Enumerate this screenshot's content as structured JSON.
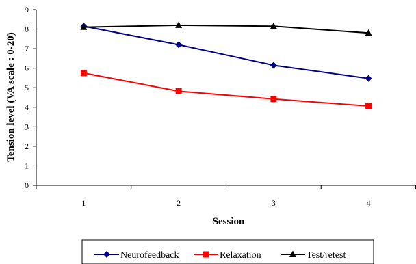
{
  "chart_data": {
    "type": "line",
    "title": "",
    "xlabel": "Session",
    "ylabel": "Tension level (VA scale : 0-20)",
    "categories": [
      "1",
      "2",
      "3",
      "4"
    ],
    "ylim": [
      0,
      9
    ],
    "yticks": [
      "0",
      "1",
      "2",
      "3",
      "4",
      "5",
      "6",
      "7",
      "8",
      "9"
    ],
    "grid": false,
    "legend_position": "bottom",
    "series": [
      {
        "name": "Neurofeedback",
        "values": [
          8.15,
          7.2,
          6.15,
          5.47
        ],
        "color": "#00008B",
        "marker": "diamond"
      },
      {
        "name": "Relaxation",
        "values": [
          5.75,
          4.82,
          4.42,
          4.06
        ],
        "color": "#FF0000",
        "marker": "square"
      },
      {
        "name": "Test/retest",
        "values": [
          8.1,
          8.2,
          8.15,
          7.8
        ],
        "color": "#000000",
        "marker": "triangle"
      }
    ]
  }
}
